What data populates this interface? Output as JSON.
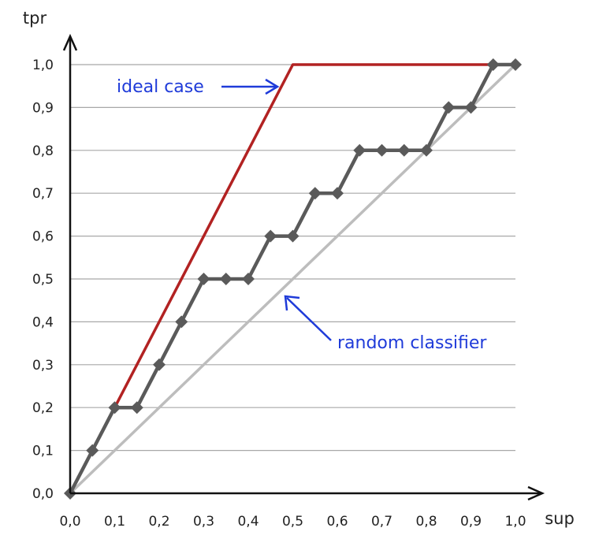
{
  "chart_data": {
    "type": "line",
    "xlabel": "sup",
    "ylabel": "tpr",
    "xlim": [
      0,
      1
    ],
    "ylim": [
      0,
      1
    ],
    "grid": "horizontal",
    "x_ticks": [
      "0,0",
      "0,1",
      "0,2",
      "0,3",
      "0,4",
      "0,5",
      "0,6",
      "0,7",
      "0,8",
      "0,9",
      "1,0"
    ],
    "y_ticks": [
      "0,0",
      "0,1",
      "0,2",
      "0,3",
      "0,4",
      "0,5",
      "0,6",
      "0,7",
      "0,8",
      "0,9",
      "1,0"
    ],
    "series": [
      {
        "color": "#bdbdbd",
        "markers": false,
        "x": [
          0,
          1
        ],
        "y": [
          0,
          1
        ]
      },
      {
        "color": "#b22222",
        "markers": false,
        "x": [
          0,
          0.5,
          1
        ],
        "y": [
          0,
          1,
          1
        ]
      },
      {
        "color": "#5a5a5a",
        "markers": true,
        "x": [
          0,
          0.05,
          0.1,
          0.15,
          0.2,
          0.25,
          0.3,
          0.35,
          0.4,
          0.45,
          0.5,
          0.55,
          0.6,
          0.65,
          0.7,
          0.75,
          0.8,
          0.85,
          0.9,
          0.95,
          1.0
        ],
        "y": [
          0,
          0.1,
          0.2,
          0.2,
          0.3,
          0.4,
          0.5,
          0.5,
          0.5,
          0.6,
          0.6,
          0.7,
          0.7,
          0.8,
          0.8,
          0.8,
          0.8,
          0.9,
          0.9,
          1.0,
          1.0
        ]
      }
    ],
    "annotations": [
      {
        "text": "ideal case",
        "color": "#1f3bd9"
      },
      {
        "text": "random classifier",
        "color": "#1f3bd9"
      }
    ]
  }
}
